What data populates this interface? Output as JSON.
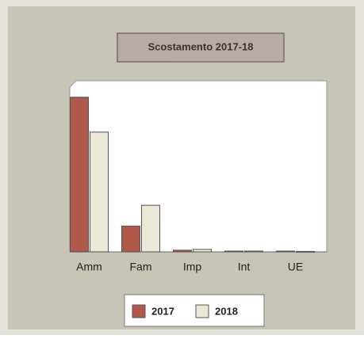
{
  "chart_data": {
    "type": "bar",
    "title": "Scostamento 2017-18",
    "categories": [
      "Amm",
      "Fam",
      "Imp",
      "Int",
      "UE"
    ],
    "series": [
      {
        "name": "2017",
        "color": "#b0584a",
        "values": [
          93,
          15.5,
          1,
          0.5,
          0.5
        ]
      },
      {
        "name": "2018",
        "color": "#ece8d8",
        "values": [
          72,
          28,
          1.5,
          0.5,
          0.3
        ]
      }
    ],
    "ylim": [
      0,
      100
    ]
  }
}
